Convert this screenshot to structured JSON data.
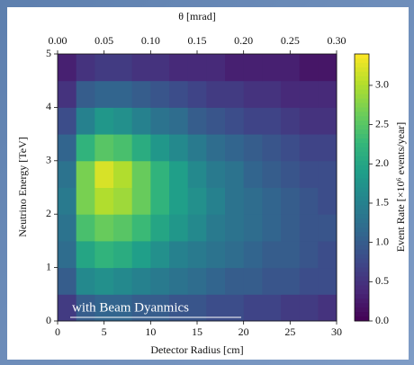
{
  "chart_data": {
    "type": "heatmap",
    "xlabel": "Detector Radius [cm]",
    "ylabel": "Neutrino Energy [TeV]",
    "x2label": "θ [mrad]",
    "colorbar_label": "Event Rate [×10⁶ events/year]",
    "annotation": "with Beam Dyanmics",
    "colormap": "viridis",
    "xbins": [
      0,
      2,
      4,
      6,
      8,
      10,
      12,
      14,
      16,
      18,
      20,
      22,
      24,
      26,
      28,
      30
    ],
    "ybins": [
      0,
      0.5,
      1,
      1.5,
      2,
      2.5,
      3,
      3.5,
      4,
      4.5,
      5
    ],
    "values": [
      [
        0.6,
        1.0,
        1.1,
        1.1,
        1.0,
        1.0,
        0.9,
        0.9,
        0.8,
        0.8,
        0.7,
        0.7,
        0.6,
        0.6,
        0.5
      ],
      [
        1.0,
        1.6,
        1.7,
        1.6,
        1.5,
        1.4,
        1.3,
        1.2,
        1.1,
        1.0,
        1.0,
        0.9,
        0.9,
        0.8,
        0.8
      ],
      [
        1.2,
        2.0,
        2.2,
        2.1,
        1.9,
        1.7,
        1.5,
        1.4,
        1.3,
        1.2,
        1.1,
        1.0,
        1.0,
        0.9,
        0.8
      ],
      [
        1.3,
        2.4,
        2.6,
        2.5,
        2.3,
        2.0,
        1.8,
        1.6,
        1.4,
        1.3,
        1.2,
        1.1,
        1.0,
        0.9,
        0.9
      ],
      [
        1.4,
        2.7,
        3.0,
        2.9,
        2.6,
        2.2,
        1.9,
        1.7,
        1.5,
        1.3,
        1.2,
        1.1,
        1.0,
        0.9,
        0.8
      ],
      [
        1.3,
        2.7,
        3.2,
        3.0,
        2.6,
        2.2,
        1.9,
        1.6,
        1.4,
        1.3,
        1.1,
        1.0,
        0.9,
        0.8,
        0.8
      ],
      [
        1.1,
        2.2,
        2.5,
        2.4,
        2.1,
        1.8,
        1.6,
        1.4,
        1.2,
        1.1,
        1.0,
        0.9,
        0.8,
        0.7,
        0.7
      ],
      [
        0.8,
        1.5,
        1.8,
        1.7,
        1.5,
        1.3,
        1.2,
        1.0,
        0.9,
        0.8,
        0.7,
        0.7,
        0.6,
        0.5,
        0.5
      ],
      [
        0.5,
        1.0,
        1.1,
        1.1,
        1.0,
        0.9,
        0.8,
        0.7,
        0.6,
        0.6,
        0.5,
        0.5,
        0.4,
        0.4,
        0.4
      ],
      [
        0.3,
        0.5,
        0.6,
        0.6,
        0.5,
        0.5,
        0.4,
        0.4,
        0.4,
        0.3,
        0.3,
        0.3,
        0.3,
        0.2,
        0.2
      ]
    ],
    "xlim": [
      0,
      30
    ],
    "xticks": [
      0,
      5,
      10,
      15,
      20,
      25,
      30
    ],
    "ylim": [
      0,
      5
    ],
    "yticks": [
      0,
      1,
      2,
      3,
      4,
      5
    ],
    "x2lim": [
      0,
      0.3
    ],
    "x2ticks": [
      {
        "value": 0,
        "label": "0.00"
      },
      {
        "value": 0.05,
        "label": "0.05"
      },
      {
        "value": 0.1,
        "label": "0.10"
      },
      {
        "value": 0.15,
        "label": "0.15"
      },
      {
        "value": 0.2,
        "label": "0.20"
      },
      {
        "value": 0.25,
        "label": "0.25"
      },
      {
        "value": 0.3,
        "label": "0.30"
      }
    ],
    "clim": [
      0,
      3.4
    ],
    "cticks": [
      {
        "value": 0,
        "label": "0.0"
      },
      {
        "value": 0.5,
        "label": "0.5"
      },
      {
        "value": 1,
        "label": "1.0"
      },
      {
        "value": 1.5,
        "label": "1.5"
      },
      {
        "value": 2,
        "label": "2.0"
      },
      {
        "value": 2.5,
        "label": "2.5"
      },
      {
        "value": 3,
        "label": "3.0"
      }
    ]
  }
}
